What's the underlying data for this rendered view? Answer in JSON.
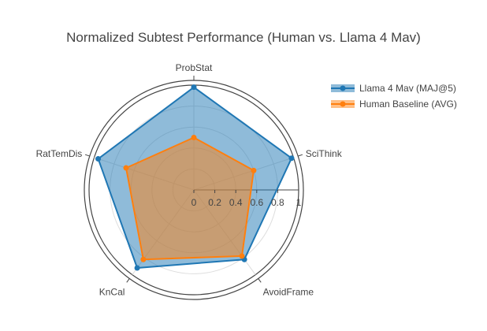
{
  "chart_data": {
    "type": "radar",
    "title": "Normalized Subtest Performance (Human vs. Llama 4 Mav)",
    "axes": [
      "ProbStat",
      "SciThink",
      "AvoidFrame",
      "KnCal",
      "RatTemDis"
    ],
    "radial_range": [
      0,
      1
    ],
    "radial_ticks": [
      "0",
      "0.2",
      "0.4",
      "0.6",
      "0.8",
      "1"
    ],
    "radial_tick_values": [
      0,
      0.2,
      0.4,
      0.6,
      0.8,
      1
    ],
    "legend_position": "top-right",
    "series": [
      {
        "name": "Llama 4 Mav (MAJ@5)",
        "color": "#1f77b4",
        "values": [
          0.98,
          0.98,
          0.82,
          0.92,
          0.96
        ]
      },
      {
        "name": "Human Baseline (AVG)",
        "color": "#ff7f0e",
        "values": [
          0.5,
          0.6,
          0.78,
          0.82,
          0.68
        ]
      }
    ]
  }
}
